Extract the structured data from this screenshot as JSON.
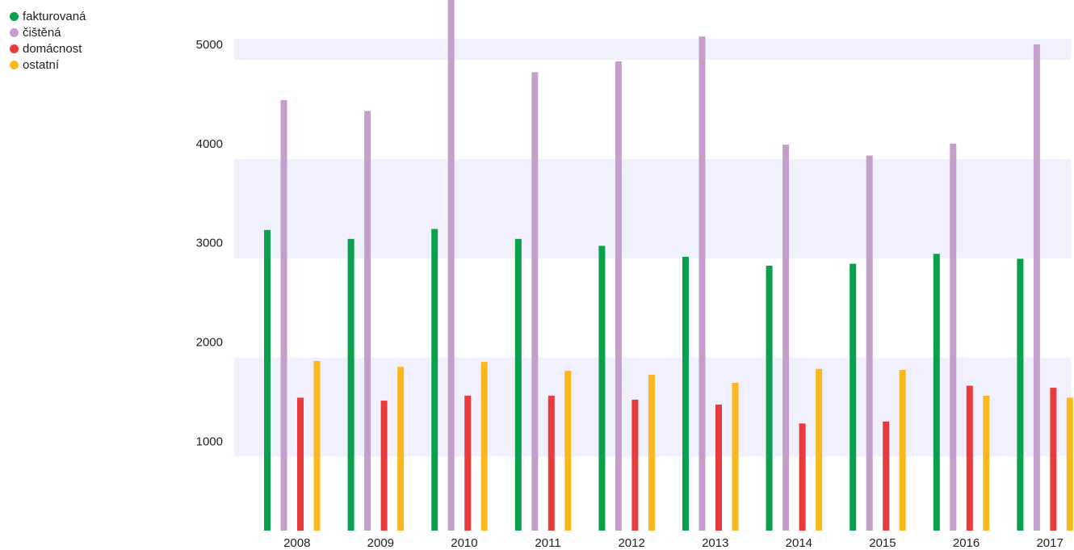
{
  "chart_data": {
    "type": "bar",
    "title": "",
    "xlabel": "",
    "ylabel": "",
    "categories": [
      "2008",
      "2009",
      "2010",
      "2011",
      "2012",
      "2013",
      "2014",
      "2015",
      "2016",
      "2017"
    ],
    "ylim": [
      100,
      5600
    ],
    "yticks": [
      1000,
      2000,
      3000,
      4000,
      5000
    ],
    "grid": "alternating horizontal bands",
    "legend_position": "top-left",
    "series": [
      {
        "name": "fakturovaná",
        "color": "#0aa04c",
        "values": [
          3130,
          3040,
          3140,
          3040,
          2970,
          2860,
          2770,
          2790,
          2890,
          2840
        ]
      },
      {
        "name": "čištěná",
        "color": "#c59fcc",
        "values": [
          4440,
          4330,
          5600,
          4720,
          4830,
          5080,
          3990,
          3880,
          4000,
          5000
        ]
      },
      {
        "name": "domácnost",
        "color": "#e93b3b",
        "values": [
          1440,
          1410,
          1460,
          1460,
          1420,
          1370,
          1180,
          1200,
          1560,
          1540
        ]
      },
      {
        "name": "ostatní",
        "color": "#fbb81e",
        "values": [
          1810,
          1750,
          1800,
          1710,
          1670,
          1590,
          1730,
          1720,
          1460,
          1440
        ]
      }
    ]
  }
}
